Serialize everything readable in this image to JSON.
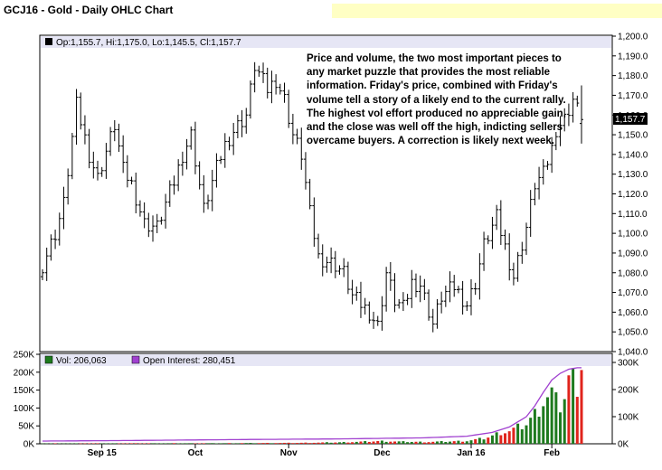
{
  "header": {
    "title": "GCJ16 - Gold - Daily OHLC Chart"
  },
  "price_panel": {
    "legend": "Op:1,155.7, Hi:1,175.0, Lo:1,145.5, Cl:1,157.7",
    "last_price_label": "1,157.7"
  },
  "volume_panel": {
    "vol_legend": "Vol: 206,063",
    "oi_legend": "Open Interest: 280,451"
  },
  "annotation": {
    "text": "Price and volume, the two most important pieces to any market puzzle that provides the most reliable information.  Friday's price, combined with Friday's volume tell a story of a likely end to the current rally.  The highest vol effort produced no appreciable gain, and the close was well off the high, indicting sellers overcame buyers.  A correction is likely next week."
  },
  "colors": {
    "up_volume": "#1e7a1e",
    "down_volume": "#e0241c",
    "open_interest": "#a040d0",
    "legend_bg": "#e6e6f5",
    "highlight": "#ffffc4"
  },
  "chart_data": [
    {
      "type": "ohlc",
      "title": "GCJ16 - Gold - Daily OHLC Chart",
      "ylim": [
        1040,
        1200
      ],
      "yticks": [
        "1,200.0",
        "1,190.0",
        "1,180.0",
        "1,170.0",
        "1,160.0",
        "1,150.0",
        "1,140.0",
        "1,130.0",
        "1,120.0",
        "1,110.0",
        "1,100.0",
        "1,090.0",
        "1,080.0",
        "1,070.0",
        "1,060.0",
        "1,050.0",
        "1,040.0"
      ],
      "xticks": [
        "Sep 15",
        "Oct",
        "Nov",
        "Dec",
        "Jan 16",
        "Feb"
      ],
      "xtick_index": [
        14,
        36,
        58,
        80,
        101,
        120
      ],
      "series_anchors": {
        "index": [
          0,
          3,
          5,
          8,
          11,
          13,
          14,
          17,
          19,
          21,
          24,
          27,
          29,
          31,
          33,
          35,
          38,
          41,
          43,
          45,
          48,
          50,
          53,
          55,
          57,
          59,
          61,
          63,
          65,
          67,
          69,
          71,
          73,
          75,
          77,
          79,
          81,
          83,
          85,
          87,
          89,
          92,
          94,
          97,
          100,
          102,
          104,
          107,
          109,
          111,
          114,
          116,
          118,
          120,
          121,
          123,
          125,
          127
        ],
        "close": [
          1084,
          1100,
          1115,
          1165,
          1140,
          1128,
          1135,
          1155,
          1132,
          1125,
          1105,
          1103,
          1115,
          1126,
          1140,
          1150,
          1112,
          1133,
          1145,
          1152,
          1160,
          1185,
          1173,
          1178,
          1168,
          1150,
          1140,
          1110,
          1088,
          1086,
          1084,
          1080,
          1068,
          1064,
          1060,
          1053,
          1080,
          1066,
          1062,
          1075,
          1074,
          1054,
          1068,
          1073,
          1064,
          1075,
          1094,
          1108,
          1093,
          1078,
          1103,
          1125,
          1130,
          1143,
          1153,
          1158,
          1168,
          1157.7
        ]
      },
      "last_bar": {
        "open": 1155.7,
        "high": 1175.0,
        "low": 1145.5,
        "close": 1157.7
      }
    },
    {
      "type": "bar",
      "title": "Vol: 206,063",
      "ylim": [
        0,
        250000
      ],
      "yticks_left": [
        "250K",
        "200K",
        "150K",
        "100K",
        "50K",
        "0K"
      ],
      "yticks_right": [
        "300K",
        "200K",
        "100K",
        "0K"
      ],
      "right_ylim": [
        0,
        330000
      ],
      "volume_anchors": {
        "index": [
          0,
          40,
          60,
          70,
          76,
          80,
          84,
          90,
          96,
          100,
          104,
          106,
          108,
          110,
          112,
          114,
          116,
          118,
          120,
          121,
          122,
          123,
          124,
          125,
          126,
          127
        ],
        "value": [
          1000,
          1500,
          2500,
          4000,
          6000,
          7500,
          6000,
          5000,
          6500,
          8000,
          15000,
          22000,
          32000,
          35000,
          45000,
          55000,
          82000,
          120000,
          140000,
          115000,
          108000,
          133000,
          180000,
          178000,
          175000,
          206063
        ]
      },
      "open_interest_anchors": {
        "index": [
          0,
          20,
          50,
          70,
          90,
          100,
          106,
          110,
          114,
          116,
          118,
          120,
          122,
          124,
          126
        ],
        "value": [
          10000,
          12000,
          16000,
          18000,
          22000,
          28000,
          42000,
          62000,
          100000,
          140000,
          190000,
          235000,
          260000,
          275000,
          280451
        ]
      }
    }
  ]
}
